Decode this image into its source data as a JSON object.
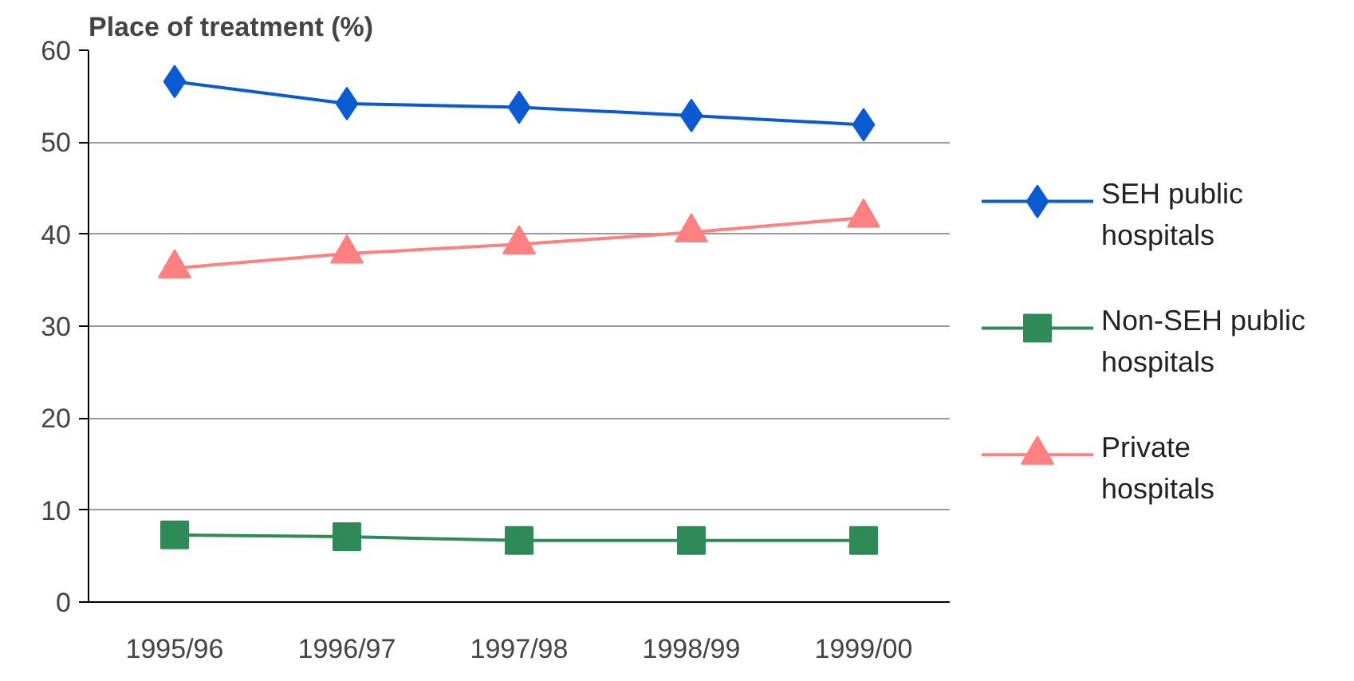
{
  "chart_data": {
    "type": "line",
    "title": "Place of treatment (%)",
    "categories": [
      "1995/96",
      "1996/97",
      "1997/98",
      "1998/99",
      "1999/00"
    ],
    "series": [
      {
        "name": "SEH public hospitals",
        "color": "#0a5ad2",
        "values": [
          56.6,
          54.2,
          53.8,
          52.9,
          51.9
        ],
        "marker": "diamond"
      },
      {
        "name": "Non-SEH public hospitals",
        "color": "#2e8b57",
        "values": [
          7.3,
          7.1,
          6.7,
          6.7,
          6.7
        ],
        "marker": "square"
      },
      {
        "name": "Private hospitals",
        "color": "#ff8080",
        "values": [
          36.3,
          37.9,
          38.9,
          40.2,
          41.8
        ],
        "marker": "triangle"
      }
    ],
    "ylim": [
      0,
      60
    ],
    "yticks": [
      0,
      10,
      20,
      30,
      40,
      50,
      60
    ],
    "grid": "y",
    "legend": "right"
  }
}
